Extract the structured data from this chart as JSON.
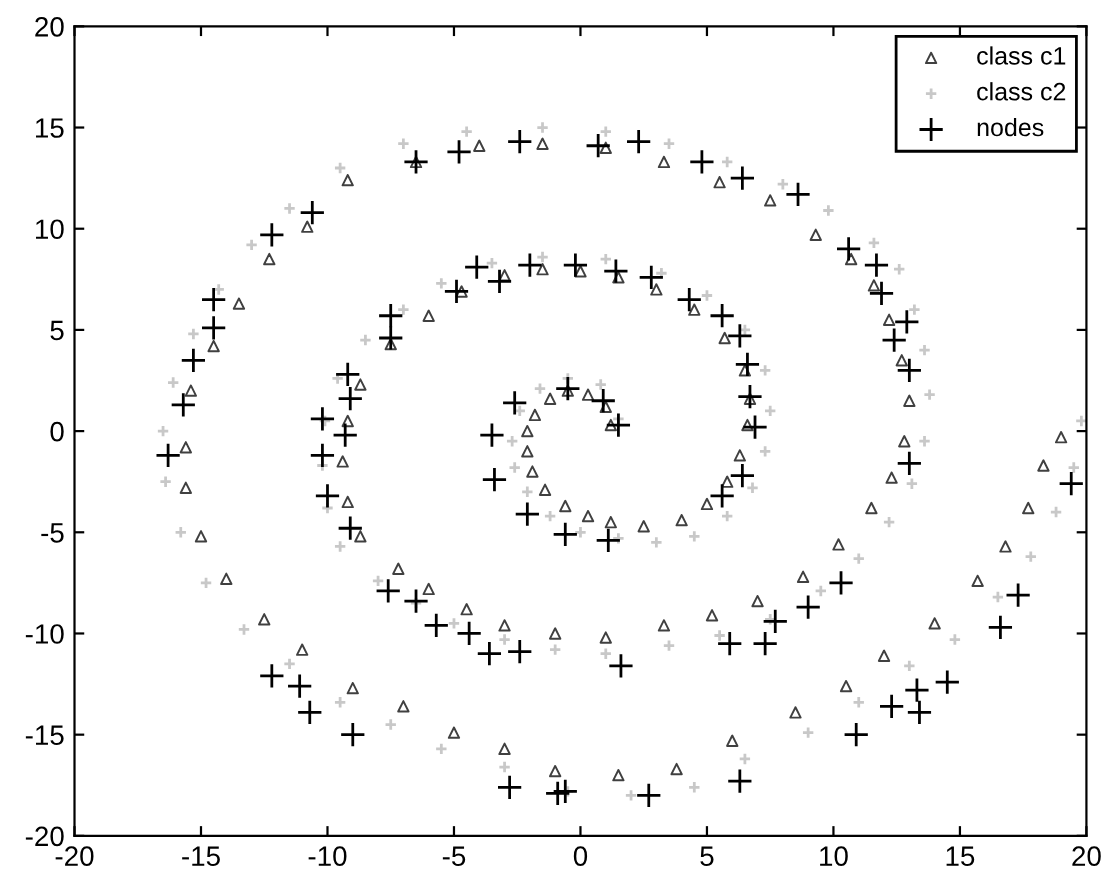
{
  "chart_data": {
    "type": "scatter",
    "xlim": [
      -20,
      20
    ],
    "ylim": [
      -20,
      20
    ],
    "xticks": [
      -20,
      -15,
      -10,
      -5,
      0,
      5,
      10,
      15,
      20
    ],
    "yticks": [
      -20,
      -15,
      -10,
      -5,
      0,
      5,
      10,
      15,
      20
    ],
    "grid": false,
    "legend": "top right",
    "series": [
      {
        "name": "class c1",
        "color": "#404040",
        "marker": "triangle",
        "x": [
          1.2,
          1,
          0.3,
          -0.5,
          -1.2,
          -1.8,
          -2.1,
          -2.1,
          -1.9,
          -1.4,
          -0.6,
          0.3,
          1.2,
          2.5,
          4,
          5,
          5.8,
          6.3,
          6.6,
          6.7,
          6.5,
          5.7,
          4.5,
          3,
          1.5,
          0,
          -1.5,
          -3,
          -4.7,
          -6,
          -7.5,
          -8.7,
          -9.2,
          -9.4,
          -9.2,
          -8.7,
          -7.2,
          -6,
          -4.5,
          -3,
          -1,
          1,
          3.3,
          5.2,
          7,
          8.8,
          10.2,
          11.5,
          12.3,
          12.8,
          13,
          12.7,
          12.2,
          11.6,
          10.7,
          9.3,
          7.5,
          5.5,
          3.3,
          1,
          -1.5,
          -4,
          -6.5,
          -9.2,
          -10.8,
          -12.3,
          -13.5,
          -14.5,
          -15.4,
          -15.6,
          -15.6,
          -15,
          -14,
          -12.5,
          -11,
          -9,
          -7,
          -5,
          -3,
          -1,
          1.5,
          3.8,
          6,
          8.5,
          10.5,
          12,
          14,
          15.7,
          16.8,
          17.7,
          18.3,
          19
        ],
        "values": [
          0.3,
          1.2,
          1.8,
          2,
          1.6,
          0.8,
          0,
          -1,
          -2,
          -2.9,
          -3.7,
          -4.2,
          -4.5,
          -4.7,
          -4.4,
          -3.6,
          -2.5,
          -1.2,
          0.3,
          1.6,
          3,
          4.6,
          6,
          7,
          7.6,
          7.9,
          8,
          7.7,
          6.9,
          5.7,
          4.3,
          2.3,
          0.5,
          -1.5,
          -3.5,
          -5.2,
          -6.8,
          -7.8,
          -8.8,
          -9.6,
          -10,
          -10.2,
          -9.6,
          -9.1,
          -8.4,
          -7.2,
          -5.6,
          -3.8,
          -2.3,
          -0.5,
          1.5,
          3.5,
          5.5,
          7.2,
          8.5,
          9.7,
          11.4,
          12.3,
          13.3,
          14,
          14.2,
          14.1,
          13.3,
          12.4,
          10.1,
          8.5,
          6.3,
          4.2,
          2,
          -0.8,
          -2.8,
          -5.2,
          -7.3,
          -9.3,
          -10.8,
          -12.7,
          -13.6,
          -14.9,
          -15.7,
          -16.8,
          -17,
          -16.7,
          -15.3,
          -13.9,
          -12.6,
          -11.1,
          -9.5,
          -7.4,
          -5.7,
          -3.8,
          -1.7,
          -0.3
        ]
      },
      {
        "name": "class c2",
        "color": "#c8c8c8",
        "marker": "cross",
        "x": [
          1.5,
          0.8,
          -0.5,
          -1.6,
          -2.4,
          -2.7,
          -2.6,
          -2.1,
          -1.2,
          0,
          1.5,
          3,
          4.5,
          5.8,
          6.8,
          7.3,
          7.5,
          7.3,
          6.5,
          5,
          3.2,
          1,
          -1.5,
          -3.5,
          -5.5,
          -7,
          -8.5,
          -9.6,
          -10.1,
          -10.2,
          -10,
          -9.5,
          -8,
          -6.5,
          -5,
          -3,
          -1,
          1,
          3.5,
          5.5,
          7.5,
          9.5,
          11,
          12.2,
          13.1,
          13.6,
          13.8,
          13.6,
          13.2,
          12.6,
          11.6,
          9.8,
          8,
          5.8,
          3.5,
          1,
          -1.5,
          -4.5,
          -7,
          -9.5,
          -11.5,
          -13,
          -14.3,
          -15.3,
          -16.1,
          -16.5,
          -16.4,
          -15.8,
          -14.8,
          -13.3,
          -11.5,
          -9.5,
          -7.5,
          -5.5,
          -3,
          -0.5,
          2,
          4.5,
          6.5,
          9,
          11,
          13,
          14.8,
          16.5,
          17.8,
          18.8,
          19.5,
          19.8
        ],
        "values": [
          0.6,
          2.3,
          2.6,
          2.1,
          1,
          -0.5,
          -1.8,
          -3,
          -4.2,
          -5,
          -5.3,
          -5.5,
          -5.2,
          -4.2,
          -2.8,
          -1,
          1,
          3,
          5,
          6.7,
          7.8,
          8.5,
          8.6,
          8.3,
          7.3,
          6,
          4.5,
          2.6,
          0.5,
          -1.7,
          -3.8,
          -5.7,
          -7.4,
          -8.5,
          -9.5,
          -10.3,
          -10.8,
          -11,
          -10.6,
          -10.1,
          -9.3,
          -7.9,
          -6.3,
          -4.5,
          -2.6,
          -0.5,
          1.8,
          4,
          6,
          8,
          9.3,
          10.9,
          12.2,
          13.3,
          14.2,
          14.8,
          15,
          14.8,
          14.2,
          13,
          11,
          9.2,
          7,
          4.8,
          2.4,
          0,
          -2.5,
          -5,
          -7.5,
          -9.8,
          -11.5,
          -13.4,
          -14.5,
          -15.7,
          -16.6,
          -17.8,
          -18,
          -17.6,
          -16.2,
          -14.9,
          -13.4,
          -11.6,
          -10.3,
          -8.2,
          -6.2,
          -4,
          -1.8,
          0.5
        ]
      },
      {
        "name": "nodes",
        "color": "#000000",
        "marker": "cross",
        "x": [
          -15.7,
          -15.3,
          -14.5,
          -14.5,
          -12.2,
          -10.6,
          -6.5,
          -4.8,
          -2.4,
          0.7,
          2.3,
          4.8,
          6.4,
          8.6,
          10.6,
          11.7,
          11.9,
          12.9,
          12.4,
          13,
          -4.1,
          -2,
          -3.2,
          -4.9,
          -7.5,
          -7.5,
          -9.2,
          -9.1,
          -10.2,
          -9.3,
          -0.2,
          1.4,
          2.8,
          4.3,
          5.6,
          6.3,
          6.6,
          6.7,
          6.9,
          -0.5,
          -2.6,
          -3.5,
          0.9,
          1.5,
          -10.2,
          -10,
          -9.1,
          -3.4,
          -2.1,
          -0.6,
          -7.6,
          -6.5,
          -5.7,
          -4.4,
          -3.6,
          -2.4,
          -12.2,
          -11.1,
          -10.7,
          -9,
          -2.8,
          -0.9,
          -16.3,
          1.1,
          5.6,
          6.4,
          13,
          1.6,
          5.9,
          7.3,
          7.7,
          9,
          10.3,
          6.3,
          2.7,
          -0.6,
          10.9,
          12.3,
          13.3,
          13.4,
          14.5,
          16.6,
          17.3,
          19.4
        ],
        "values": [
          1.3,
          3.5,
          5.1,
          6.5,
          9.7,
          10.8,
          13.3,
          13.8,
          14.3,
          14.1,
          14.3,
          13.3,
          12.5,
          11.7,
          9,
          8.2,
          6.8,
          5.4,
          4.5,
          3,
          8.1,
          8.2,
          7.4,
          6.9,
          5.7,
          4.6,
          2.8,
          1.6,
          0.6,
          -0.2,
          8.2,
          7.9,
          7.6,
          6.5,
          5.7,
          4.7,
          3.3,
          1.7,
          0.2,
          2.1,
          1.4,
          -0.2,
          1.5,
          0.3,
          -1.2,
          -3.2,
          -4.8,
          -2.4,
          -4.1,
          -5.1,
          -7.9,
          -8.4,
          -9.6,
          -10,
          -11,
          -10.9,
          -12.1,
          -12.6,
          -13.9,
          -15,
          -17.6,
          -17.9,
          -1.2,
          -5.4,
          -3.2,
          -2.2,
          -1.6,
          -11.6,
          -10.5,
          -10.5,
          -9.4,
          -8.7,
          -7.5,
          -17.3,
          -18,
          -17.8,
          -15,
          -13.6,
          -12.8,
          -13.9,
          -12.4,
          -9.7,
          -8.1,
          -2.6
        ]
      }
    ]
  }
}
